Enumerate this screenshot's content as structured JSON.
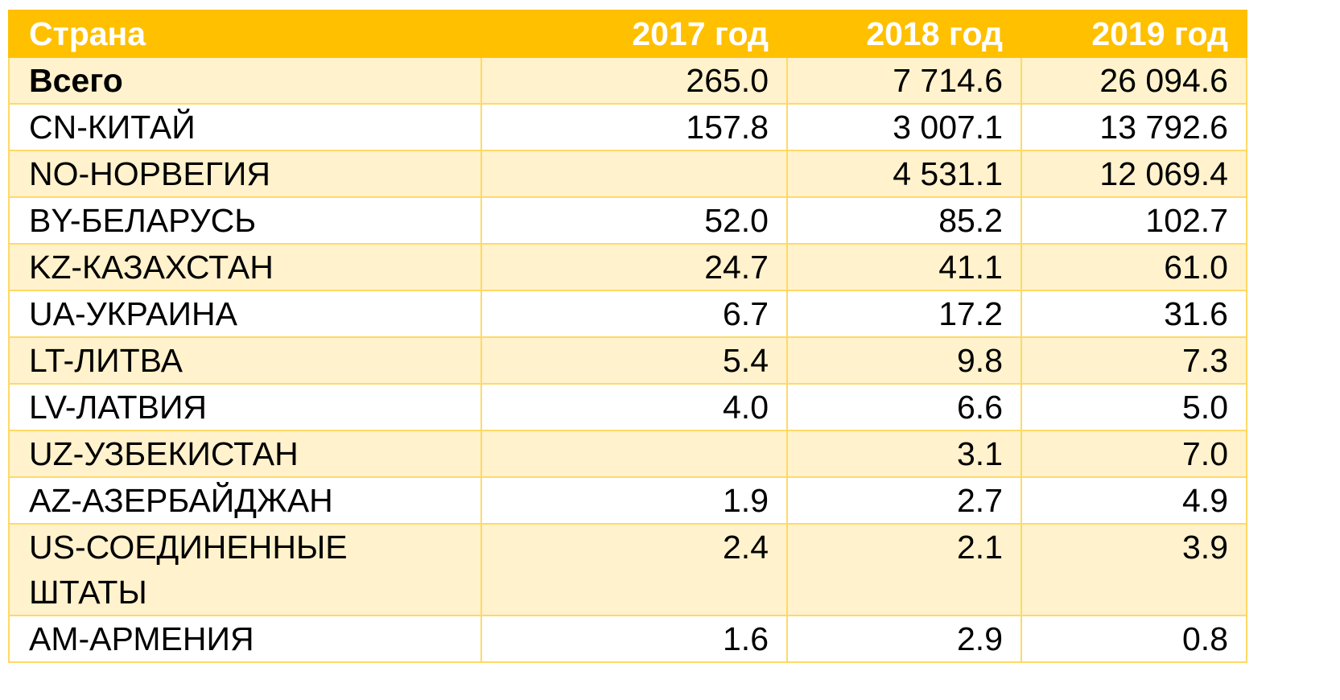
{
  "table": {
    "headers": [
      "Страна",
      "2017 год",
      "2018 год",
      "2019 год"
    ],
    "rows": [
      {
        "country": "Всего",
        "y2017": "265.0",
        "y2018": "7 714.6",
        "y2019": "26 094.6"
      },
      {
        "country": "CN-КИТАЙ",
        "y2017": "157.8",
        "y2018": "3 007.1",
        "y2019": "13 792.6"
      },
      {
        "country": "NO-НОРВЕГИЯ",
        "y2017": "",
        "y2018": "4 531.1",
        "y2019": "12 069.4"
      },
      {
        "country": "BY-БЕЛАРУСЬ",
        "y2017": "52.0",
        "y2018": "85.2",
        "y2019": "102.7"
      },
      {
        "country": "KZ-КАЗАХСТАН",
        "y2017": "24.7",
        "y2018": "41.1",
        "y2019": "61.0"
      },
      {
        "country": "UA-УКРАИНА",
        "y2017": "6.7",
        "y2018": "17.2",
        "y2019": "31.6"
      },
      {
        "country": "LT-ЛИТВА",
        "y2017": "5.4",
        "y2018": "9.8",
        "y2019": "7.3"
      },
      {
        "country": "LV-ЛАТВИЯ",
        "y2017": "4.0",
        "y2018": "6.6",
        "y2019": "5.0"
      },
      {
        "country": "UZ-УЗБЕКИСТАН",
        "y2017": "",
        "y2018": "3.1",
        "y2019": "7.0"
      },
      {
        "country": "AZ-АЗЕРБАЙДЖАН",
        "y2017": "1.9",
        "y2018": "2.7",
        "y2019": "4.9"
      },
      {
        "country": "US-СОЕДИНЕННЫЕ ШТАТЫ",
        "y2017": "2.4",
        "y2018": "2.1",
        "y2019": "3.9"
      },
      {
        "country": "AM-АРМЕНИЯ",
        "y2017": "1.6",
        "y2018": "2.9",
        "y2019": "0.8"
      }
    ]
  },
  "colors": {
    "header_bg": "#ffc000",
    "band_bg": "#fff2cc",
    "border": "#ffd966"
  }
}
